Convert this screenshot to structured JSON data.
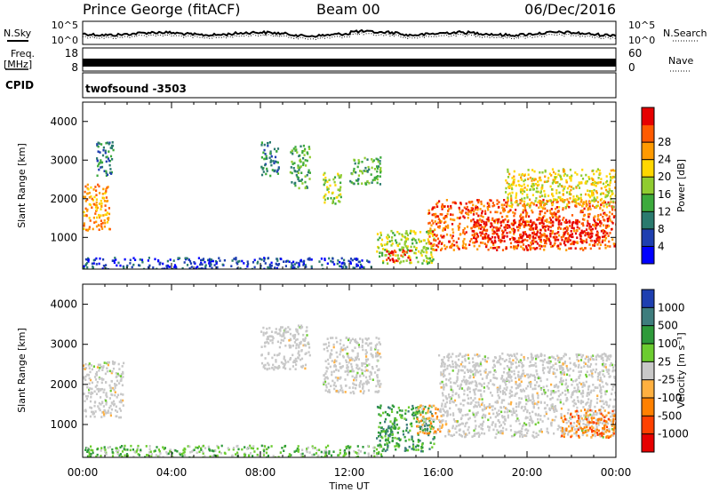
{
  "header": {
    "site": "Prince George (fitACF)",
    "beam": "Beam 00",
    "date": "06/Dec/2016"
  },
  "strip_nsky": {
    "left_label": "N.Sky",
    "right_label": "N.Search",
    "left_ticks": [
      "10^5",
      "10^0"
    ],
    "right_ticks": [
      "10^5",
      "10^0"
    ]
  },
  "strip_freq": {
    "left_label_top": "Freq.",
    "left_label_bottom": "[MHz]",
    "right_label": "Nave",
    "left_ticks": [
      "18",
      "8"
    ],
    "right_ticks": [
      "60",
      "0"
    ]
  },
  "cpid": {
    "label": "CPID",
    "value": "twofsound -3503"
  },
  "x_axis": {
    "label": "Time UT",
    "ticks": [
      "00:00",
      "04:00",
      "08:00",
      "12:00",
      "16:00",
      "20:00",
      "00:00"
    ],
    "range_hours": [
      0,
      24
    ]
  },
  "chart_data": [
    {
      "type": "heatmap",
      "title": "",
      "ylabel": "Slant Range [km]",
      "xlabel": "Time UT",
      "ylim": [
        180,
        4500
      ],
      "yticks": [
        "1000",
        "2000",
        "3000",
        "4000"
      ],
      "colorbar": {
        "label": "Power [dB]",
        "ticks": [
          "4",
          "8",
          "12",
          "16",
          "20",
          "24",
          "28"
        ],
        "colors": [
          "#0000ff",
          "#1e3fb0",
          "#2a7a6e",
          "#3caa3c",
          "#90cc30",
          "#ffd700",
          "#ff9a00",
          "#ff5a00",
          "#e60000"
        ]
      },
      "regions": [
        {
          "t": [
            0.0,
            1.2
          ],
          "r": [
            1200,
            2400
          ],
          "level": 6
        },
        {
          "t": [
            0.6,
            1.4
          ],
          "r": [
            2600,
            3500
          ],
          "level": 2
        },
        {
          "t": [
            0.0,
            13.0
          ],
          "r": [
            200,
            500
          ],
          "level": 1
        },
        {
          "t": [
            8.0,
            8.8
          ],
          "r": [
            2600,
            3500
          ],
          "level": 2
        },
        {
          "t": [
            9.3,
            10.2
          ],
          "r": [
            2300,
            3400
          ],
          "level": 3
        },
        {
          "t": [
            10.8,
            11.6
          ],
          "r": [
            1900,
            2700
          ],
          "level": 4
        },
        {
          "t": [
            12.0,
            13.4
          ],
          "r": [
            2400,
            3100
          ],
          "level": 3
        },
        {
          "t": [
            13.2,
            15.8
          ],
          "r": [
            350,
            1200
          ],
          "level": 4
        },
        {
          "t": [
            13.6,
            14.8
          ],
          "r": [
            400,
            700
          ],
          "level": 8
        },
        {
          "t": [
            15.5,
            24.0
          ],
          "r": [
            700,
            2000
          ],
          "level": 7
        },
        {
          "t": [
            17.5,
            23.5
          ],
          "r": [
            900,
            1500
          ],
          "level": 8
        },
        {
          "t": [
            19.0,
            24.0
          ],
          "r": [
            1800,
            2800
          ],
          "level": 5
        }
      ]
    },
    {
      "type": "heatmap",
      "title": "",
      "ylabel": "Slant Range [km]",
      "xlabel": "Time UT",
      "ylim": [
        180,
        4500
      ],
      "yticks": [
        "1000",
        "2000",
        "3000",
        "4000"
      ],
      "colorbar": {
        "label": "Velocity [m s⁻¹]",
        "ticks": [
          "1000",
          "500",
          "100",
          "25",
          "-25",
          "-100",
          "-500",
          "-1000"
        ],
        "colors": [
          "#1e3fb0",
          "#3e7d7d",
          "#2e9a3a",
          "#6ccc30",
          "#c8c8c8",
          "#ffb040",
          "#ff8000",
          "#ff4000",
          "#e60000"
        ]
      },
      "regions": [
        {
          "t": [
            0.0,
            1.8
          ],
          "r": [
            1200,
            2600
          ],
          "level": 4
        },
        {
          "t": [
            0.0,
            13.5
          ],
          "r": [
            200,
            500
          ],
          "level": 3
        },
        {
          "t": [
            8.0,
            10.2
          ],
          "r": [
            2400,
            3500
          ],
          "level": 4
        },
        {
          "t": [
            10.8,
            13.4
          ],
          "r": [
            1800,
            3200
          ],
          "level": 4
        },
        {
          "t": [
            13.2,
            15.8
          ],
          "r": [
            350,
            1500
          ],
          "level": 2
        },
        {
          "t": [
            15.0,
            16.2
          ],
          "r": [
            800,
            1500
          ],
          "level": 5
        },
        {
          "t": [
            16.0,
            24.0
          ],
          "r": [
            700,
            2800
          ],
          "level": 4
        },
        {
          "t": [
            21.5,
            24.0
          ],
          "r": [
            700,
            1400
          ],
          "level": 6
        }
      ]
    }
  ]
}
